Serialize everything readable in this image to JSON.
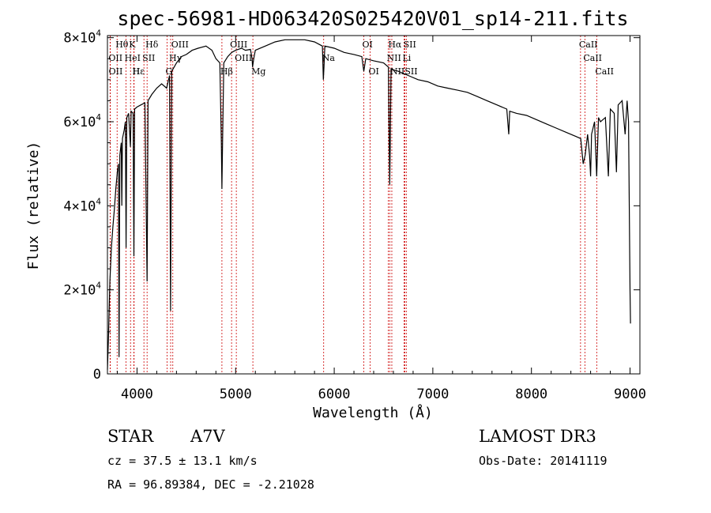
{
  "chart_data": {
    "type": "line",
    "title": "spec-56981-HD063420S025420V01_sp14-211.fits",
    "xlabel": "Wavelength (Å)",
    "ylabel": "Flux (relative)",
    "xlim": [
      3700,
      9100
    ],
    "ylim": [
      0,
      80500
    ],
    "x_ticks": [
      4000,
      5000,
      6000,
      7000,
      8000,
      9000
    ],
    "x_tick_labels": [
      "4000",
      "5000",
      "6000",
      "7000",
      "8000",
      "9000"
    ],
    "y_ticks": [
      {
        "value": 0,
        "mant": "0",
        "exp": ""
      },
      {
        "value": 20000,
        "mant": "2×10",
        "exp": "4"
      },
      {
        "value": 40000,
        "mant": "4×10",
        "exp": "4"
      },
      {
        "value": 60000,
        "mant": "6×10",
        "exp": "4"
      },
      {
        "value": 80000,
        "mant": "8×10",
        "exp": "4"
      }
    ],
    "series": [
      {
        "name": "flux",
        "points": [
          [
            3700,
            1000
          ],
          [
            3710,
            8000
          ],
          [
            3725,
            22000
          ],
          [
            3740,
            30000
          ],
          [
            3755,
            35000
          ],
          [
            3770,
            39000
          ],
          [
            3785,
            44000
          ],
          [
            3800,
            48000
          ],
          [
            3812,
            50000
          ],
          [
            3818,
            4000
          ],
          [
            3826,
            52000
          ],
          [
            3840,
            55000
          ],
          [
            3846,
            40000
          ],
          [
            3852,
            56000
          ],
          [
            3870,
            58000
          ],
          [
            3882,
            60000
          ],
          [
            3889,
            30000
          ],
          [
            3896,
            61000
          ],
          [
            3915,
            62000
          ],
          [
            3933,
            54000
          ],
          [
            3940,
            62500
          ],
          [
            3960,
            62000
          ],
          [
            3968,
            28000
          ],
          [
            3976,
            63000
          ],
          [
            4000,
            63500
          ],
          [
            4040,
            64000
          ],
          [
            4080,
            64500
          ],
          [
            4102,
            22000
          ],
          [
            4112,
            65000
          ],
          [
            4150,
            66500
          ],
          [
            4200,
            68000
          ],
          [
            4250,
            69000
          ],
          [
            4300,
            68000
          ],
          [
            4330,
            71000
          ],
          [
            4340,
            15000
          ],
          [
            4352,
            72000
          ],
          [
            4400,
            74000
          ],
          [
            4450,
            75500
          ],
          [
            4500,
            76000
          ],
          [
            4560,
            77000
          ],
          [
            4620,
            77500
          ],
          [
            4700,
            78000
          ],
          [
            4760,
            77000
          ],
          [
            4800,
            75000
          ],
          [
            4840,
            74000
          ],
          [
            4855,
            55000
          ],
          [
            4861,
            44000
          ],
          [
            4868,
            56000
          ],
          [
            4880,
            74000
          ],
          [
            4920,
            75500
          ],
          [
            4960,
            76500
          ],
          [
            5000,
            77000
          ],
          [
            5060,
            77500
          ],
          [
            5100,
            77000
          ],
          [
            5150,
            77200
          ],
          [
            5167,
            75000
          ],
          [
            5172,
            73000
          ],
          [
            5184,
            75000
          ],
          [
            5200,
            77000
          ],
          [
            5300,
            78000
          ],
          [
            5400,
            79000
          ],
          [
            5500,
            79500
          ],
          [
            5600,
            79500
          ],
          [
            5700,
            79500
          ],
          [
            5800,
            79000
          ],
          [
            5880,
            78000
          ],
          [
            5890,
            70000
          ],
          [
            5896,
            73000
          ],
          [
            5905,
            78000
          ],
          [
            6000,
            77500
          ],
          [
            6100,
            76500
          ],
          [
            6200,
            76000
          ],
          [
            6280,
            75500
          ],
          [
            6300,
            72000
          ],
          [
            6320,
            75000
          ],
          [
            6400,
            74500
          ],
          [
            6500,
            74000
          ],
          [
            6550,
            73000
          ],
          [
            6558,
            55000
          ],
          [
            6563,
            45000
          ],
          [
            6568,
            55000
          ],
          [
            6576,
            72500
          ],
          [
            6650,
            72000
          ],
          [
            6750,
            71000
          ],
          [
            6850,
            70000
          ],
          [
            6950,
            69500
          ],
          [
            7050,
            68500
          ],
          [
            7150,
            68000
          ],
          [
            7250,
            67500
          ],
          [
            7350,
            67000
          ],
          [
            7450,
            66000
          ],
          [
            7550,
            65000
          ],
          [
            7650,
            64000
          ],
          [
            7750,
            63000
          ],
          [
            7770,
            57000
          ],
          [
            7780,
            62500
          ],
          [
            7850,
            62000
          ],
          [
            7950,
            61500
          ],
          [
            8050,
            60500
          ],
          [
            8150,
            59500
          ],
          [
            8250,
            58500
          ],
          [
            8350,
            57500
          ],
          [
            8450,
            56500
          ],
          [
            8500,
            56000
          ],
          [
            8525,
            50000
          ],
          [
            8545,
            52000
          ],
          [
            8570,
            57000
          ],
          [
            8590,
            52000
          ],
          [
            8600,
            47000
          ],
          [
            8610,
            57000
          ],
          [
            8640,
            60000
          ],
          [
            8662,
            47000
          ],
          [
            8680,
            61000
          ],
          [
            8700,
            60000
          ],
          [
            8750,
            61000
          ],
          [
            8780,
            47000
          ],
          [
            8800,
            63000
          ],
          [
            8840,
            62000
          ],
          [
            8862,
            48000
          ],
          [
            8880,
            64000
          ],
          [
            8920,
            65000
          ],
          [
            8950,
            57000
          ],
          [
            8970,
            65000
          ],
          [
            8985,
            60000
          ],
          [
            9000,
            20000
          ],
          [
            9005,
            12000
          ]
        ]
      }
    ],
    "spectral_lines": [
      {
        "label": "Hθ",
        "wave": 3798,
        "row": 1
      },
      {
        "label": "K",
        "wave": 3934,
        "row": 1
      },
      {
        "label": "Hδ",
        "wave": 4102,
        "row": 1
      },
      {
        "label": "OII",
        "wave": 3727,
        "row": 2
      },
      {
        "label": "HeI",
        "wave": 3889,
        "row": 2
      },
      {
        "label": "SII",
        "wave": 4070,
        "row": 2
      },
      {
        "label": "OIII",
        "wave": 4363,
        "row": 1
      },
      {
        "label": "Hγ",
        "wave": 4341,
        "row": 2
      },
      {
        "label": "G",
        "wave": 4305,
        "row": 3
      },
      {
        "label": "OIII",
        "wave": 4959,
        "row": 1
      },
      {
        "label": "OIII",
        "wave": 5007,
        "row": 2
      },
      {
        "label": "Hβ",
        "wave": 4861,
        "row": 3
      },
      {
        "label": "Mg",
        "wave": 5175,
        "row": 3
      },
      {
        "label": "Na",
        "wave": 5893,
        "row": 2
      },
      {
        "label": "OI",
        "wave": 6300,
        "row": 1
      },
      {
        "label": "OI",
        "wave": 6364,
        "row": 3
      },
      {
        "label": "Hα",
        "wave": 6563,
        "row": 1
      },
      {
        "label": "SII",
        "wave": 6717,
        "row": 1
      },
      {
        "label": "NII",
        "wave": 6548,
        "row": 2
      },
      {
        "label": "Li",
        "wave": 6708,
        "row": 2
      },
      {
        "label": "NII",
        "wave": 6584,
        "row": 3
      },
      {
        "label": "SII",
        "wave": 6731,
        "row": 3
      },
      {
        "label": "OII",
        "wave": 3729,
        "row": 3
      },
      {
        "label": "Hε",
        "wave": 3970,
        "row": 3
      },
      {
        "label": "H",
        "wave": 3968,
        "row": 3
      },
      {
        "label": "CaII",
        "wave": 8498,
        "row": 1
      },
      {
        "label": "CaII",
        "wave": 8542,
        "row": 2
      },
      {
        "label": "CaII",
        "wave": 8662,
        "row": 3
      }
    ]
  },
  "info": {
    "object_class": "STAR",
    "subclass": "A7V",
    "survey": "LAMOST DR3",
    "cz": "cz = 37.5 ± 13.1 km/s",
    "obs_date": "Obs-Date: 20141119",
    "radec": "RA =  96.89384, DEC =  -2.21028"
  },
  "colors": {
    "axes": "#000000",
    "spectrum": "#000000",
    "line_markers": "#cc0000"
  }
}
